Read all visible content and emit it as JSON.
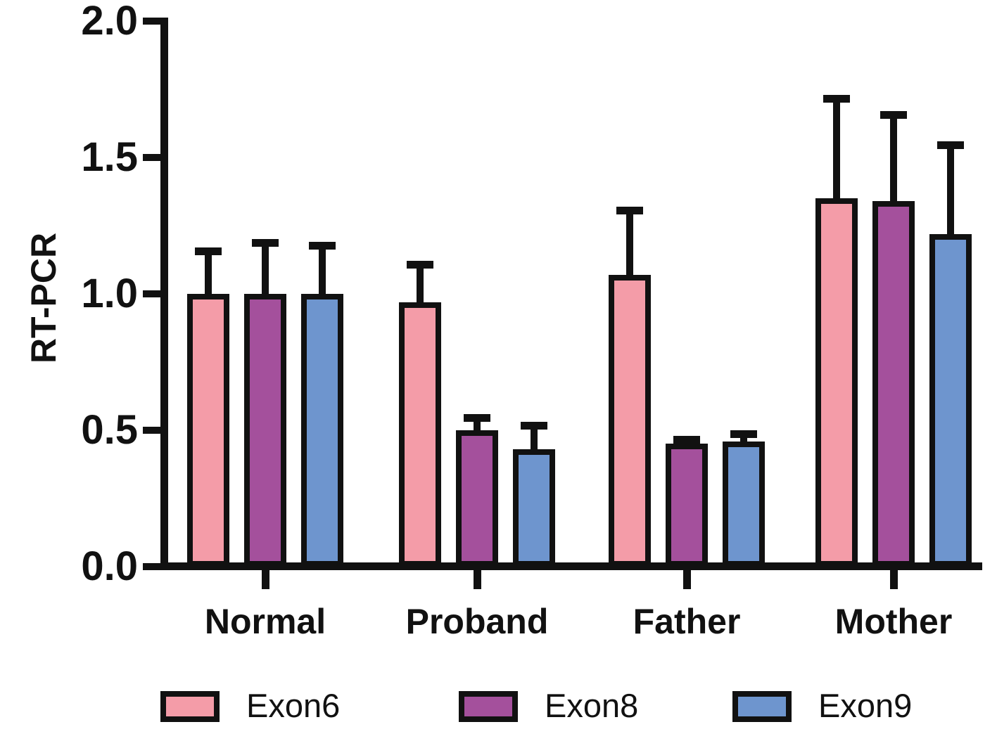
{
  "chart_data": {
    "type": "bar",
    "title": "",
    "ylabel": "RT-PCR",
    "xlabel": "",
    "ylim": [
      0.0,
      2.0
    ],
    "yticks": [
      "0.0",
      "0.5",
      "1.0",
      "1.5",
      "2.0"
    ],
    "categories": [
      "Normal",
      "Proband",
      "Father",
      "Mother"
    ],
    "series": [
      {
        "name": "Exon6",
        "color": "#F49CA8",
        "values": [
          1.0,
          0.97,
          1.07,
          1.35
        ],
        "errors_plus": [
          0.17,
          0.15,
          0.25,
          0.38
        ]
      },
      {
        "name": "Exon8",
        "color": "#A4509C",
        "values": [
          1.0,
          0.5,
          0.45,
          1.34
        ],
        "errors_plus": [
          0.2,
          0.06,
          0.03,
          0.33
        ]
      },
      {
        "name": "Exon9",
        "color": "#6E95CE",
        "values": [
          1.0,
          0.43,
          0.46,
          1.22
        ],
        "errors_plus": [
          0.19,
          0.1,
          0.04,
          0.34
        ]
      }
    ],
    "legend_position": "bottom",
    "grid": false,
    "error_bars": "plus-only",
    "bar_outline_color": "#111111",
    "error_bar_color": "#111111",
    "axis_color": "#111111",
    "background_color": "#FFFFFF"
  }
}
